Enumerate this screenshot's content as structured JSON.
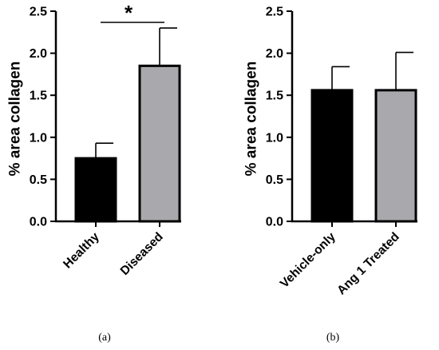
{
  "chart_data": [
    {
      "type": "bar",
      "panel_label": "(a)",
      "categories": [
        "Healthy",
        "Diseased"
      ],
      "values": [
        0.75,
        1.85
      ],
      "error_upper": [
        0.93,
        2.3
      ],
      "bar_colors": [
        "#000000",
        "#a9a9ad"
      ],
      "ylabel": "% area collagen",
      "ylim": [
        0,
        2.5
      ],
      "yticks": [
        "0.0",
        "0.5",
        "1.0",
        "1.5",
        "2.0",
        "2.5"
      ],
      "significance": {
        "between": [
          0,
          1
        ],
        "label": "*"
      }
    },
    {
      "type": "bar",
      "panel_label": "(b)",
      "categories": [
        "Vehicle-only",
        "Ang 1 Treated"
      ],
      "values": [
        1.56,
        1.56
      ],
      "error_upper": [
        1.84,
        2.01
      ],
      "bar_colors": [
        "#000000",
        "#a9a9ad"
      ],
      "ylabel": "% area collagen",
      "ylim": [
        0,
        2.5
      ],
      "yticks": [
        "0.0",
        "0.5",
        "1.0",
        "1.5",
        "2.0",
        "2.5"
      ]
    }
  ]
}
